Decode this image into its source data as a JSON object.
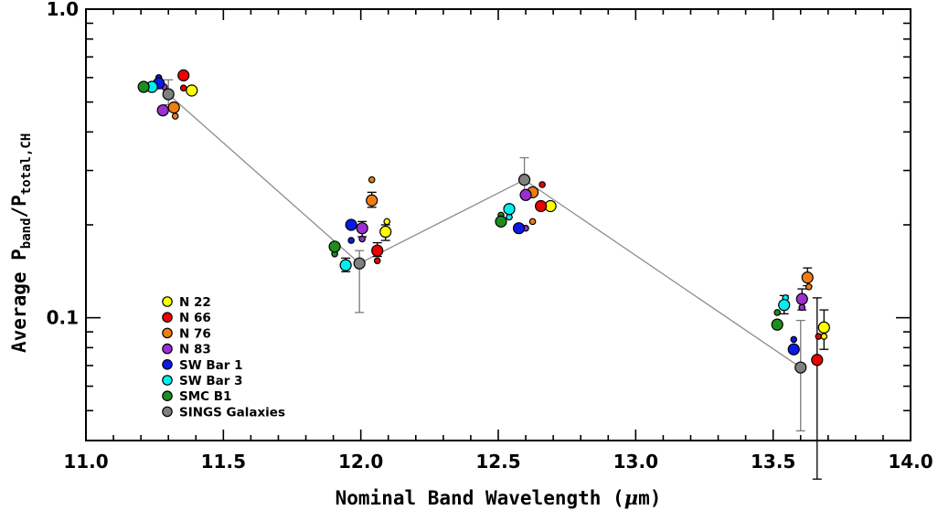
{
  "chart_data": {
    "type": "scatter",
    "xlabel_main": "Nominal Band Wavelength (",
    "xlabel_mu": "μ",
    "xlabel_unit": "m)",
    "ylabel_main": "Average P",
    "ylabel_sub1": "band",
    "ylabel_slash": "/P",
    "ylabel_sub2": "total,CH",
    "xlim": [
      11.0,
      14.0
    ],
    "ylim": [
      0.04,
      1.0
    ],
    "y_scale": "log",
    "x_ticks": [
      11.0,
      11.5,
      12.0,
      12.5,
      13.0,
      13.5,
      14.0
    ],
    "x_tick_labels": [
      "11.0",
      "11.5",
      "12.0",
      "12.5",
      "13.0",
      "13.5",
      "14.0"
    ],
    "y_ticks": [
      0.1,
      1.0
    ],
    "y_tick_labels": [
      "0.1",
      "1.0"
    ],
    "legend_position": "lower-left",
    "series": [
      {
        "name": "N 22",
        "color": "#ffff00",
        "points": [
          {
            "x": 11.385,
            "y": 0.545,
            "size": "large"
          },
          {
            "x": 12.09,
            "y": 0.19,
            "size": "large",
            "err": [
              0.178,
              0.2
            ]
          },
          {
            "x": 12.095,
            "y": 0.205,
            "size": "small"
          },
          {
            "x": 12.69,
            "y": 0.23,
            "size": "large"
          },
          {
            "x": 13.685,
            "y": 0.093,
            "size": "large",
            "err": [
              0.079,
              0.106
            ]
          },
          {
            "x": 13.685,
            "y": 0.087,
            "size": "small"
          }
        ]
      },
      {
        "name": "N 66",
        "color": "#ee0000",
        "points": [
          {
            "x": 11.355,
            "y": 0.61,
            "size": "large"
          },
          {
            "x": 11.355,
            "y": 0.555,
            "size": "small"
          },
          {
            "x": 12.06,
            "y": 0.165,
            "size": "large",
            "err": [
              0.158,
              0.175
            ]
          },
          {
            "x": 12.06,
            "y": 0.153,
            "size": "small"
          },
          {
            "x": 12.655,
            "y": 0.23,
            "size": "large"
          },
          {
            "x": 12.66,
            "y": 0.27,
            "size": "small"
          },
          {
            "x": 13.66,
            "y": 0.073,
            "size": "large",
            "err": [
              0.03,
              0.116
            ]
          },
          {
            "x": 13.665,
            "y": 0.087,
            "size": "small"
          }
        ]
      },
      {
        "name": "N 76",
        "color": "#f07d12",
        "points": [
          {
            "x": 11.32,
            "y": 0.48,
            "size": "large"
          },
          {
            "x": 11.325,
            "y": 0.45,
            "size": "small"
          },
          {
            "x": 12.04,
            "y": 0.24,
            "size": "large",
            "err": [
              0.228,
              0.255
            ]
          },
          {
            "x": 12.04,
            "y": 0.28,
            "size": "small"
          },
          {
            "x": 12.625,
            "y": 0.255,
            "size": "large"
          },
          {
            "x": 12.625,
            "y": 0.205,
            "size": "small"
          },
          {
            "x": 13.625,
            "y": 0.135,
            "size": "large",
            "err": [
              0.127,
              0.145
            ]
          },
          {
            "x": 13.63,
            "y": 0.126,
            "size": "small"
          }
        ]
      },
      {
        "name": "N 83",
        "color": "#9a30d0",
        "points": [
          {
            "x": 11.28,
            "y": 0.47,
            "size": "large"
          },
          {
            "x": 11.285,
            "y": 0.56,
            "size": "small"
          },
          {
            "x": 12.005,
            "y": 0.195,
            "size": "large",
            "err": [
              0.183,
              0.205
            ]
          },
          {
            "x": 12.005,
            "y": 0.18,
            "size": "small"
          },
          {
            "x": 12.6,
            "y": 0.25,
            "size": "large"
          },
          {
            "x": 12.6,
            "y": 0.195,
            "size": "small"
          },
          {
            "x": 13.605,
            "y": 0.115,
            "size": "large",
            "err": [
              0.106,
              0.124
            ]
          },
          {
            "x": 13.605,
            "y": 0.108,
            "size": "small"
          }
        ]
      },
      {
        "name": "SW Bar 1",
        "color": "#0a19e8",
        "points": [
          {
            "x": 11.265,
            "y": 0.575,
            "size": "large"
          },
          {
            "x": 11.265,
            "y": 0.6,
            "size": "small"
          },
          {
            "x": 11.965,
            "y": 0.2,
            "size": "large"
          },
          {
            "x": 11.965,
            "y": 0.178,
            "size": "small"
          },
          {
            "x": 12.575,
            "y": 0.195,
            "size": "large"
          },
          {
            "x": 13.575,
            "y": 0.079,
            "size": "large"
          },
          {
            "x": 13.575,
            "y": 0.085,
            "size": "small"
          }
        ]
      },
      {
        "name": "SW Bar 3",
        "color": "#00f0f0",
        "points": [
          {
            "x": 11.24,
            "y": 0.56,
            "size": "large"
          },
          {
            "x": 11.945,
            "y": 0.148,
            "size": "large",
            "err": [
              0.141,
              0.156
            ]
          },
          {
            "x": 12.54,
            "y": 0.225,
            "size": "large"
          },
          {
            "x": 12.54,
            "y": 0.212,
            "size": "small"
          },
          {
            "x": 13.54,
            "y": 0.11,
            "size": "large",
            "err": [
              0.103,
              0.118
            ]
          },
          {
            "x": 13.545,
            "y": 0.116,
            "size": "small"
          }
        ]
      },
      {
        "name": "SMC B1",
        "color": "#1f8c1f",
        "points": [
          {
            "x": 11.21,
            "y": 0.56,
            "size": "large"
          },
          {
            "x": 11.905,
            "y": 0.17,
            "size": "large"
          },
          {
            "x": 11.905,
            "y": 0.161,
            "size": "small"
          },
          {
            "x": 12.51,
            "y": 0.205,
            "size": "large"
          },
          {
            "x": 12.51,
            "y": 0.215,
            "size": "small"
          },
          {
            "x": 13.515,
            "y": 0.095,
            "size": "large"
          },
          {
            "x": 13.515,
            "y": 0.104,
            "size": "small"
          }
        ]
      },
      {
        "name": "SINGS Galaxies",
        "color": "#808080",
        "points": [
          {
            "x": 11.3,
            "y": 0.53,
            "size": "large",
            "err": [
              0.49,
              0.59
            ]
          },
          {
            "x": 11.995,
            "y": 0.15,
            "size": "large",
            "err": [
              0.104,
              0.165
            ]
          },
          {
            "x": 12.595,
            "y": 0.28,
            "size": "large",
            "err": [
              0.25,
              0.33
            ]
          },
          {
            "x": 13.6,
            "y": 0.069,
            "size": "large",
            "err": [
              0.043,
              0.098
            ]
          }
        ]
      }
    ],
    "trend_line": {
      "color": "#8c8c8c",
      "x": [
        11.3,
        11.995,
        12.595,
        13.6
      ],
      "y": [
        0.53,
        0.15,
        0.28,
        0.069
      ]
    }
  }
}
